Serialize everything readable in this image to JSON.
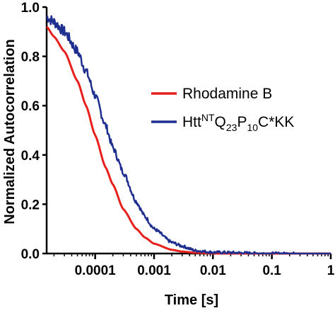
{
  "chart_data": {
    "type": "line",
    "x_scale": "log",
    "xlabel": "Time [s]",
    "ylabel": "Normalized  Autocorrelation",
    "xlim": [
      1.5e-05,
      1
    ],
    "ylim": [
      0,
      1.0
    ],
    "x_ticks": [
      {
        "value": 0.0001,
        "label": "0.0001"
      },
      {
        "value": 0.001,
        "label": "0.001"
      },
      {
        "value": 0.01,
        "label": "0.01"
      },
      {
        "value": 0.1,
        "label": "0.1"
      },
      {
        "value": 1,
        "label": "1"
      }
    ],
    "y_ticks": [
      {
        "value": 0.0,
        "label": "0.0"
      },
      {
        "value": 0.2,
        "label": "0.2"
      },
      {
        "value": 0.4,
        "label": "0.4"
      },
      {
        "value": 0.6,
        "label": "0.6"
      },
      {
        "value": 0.8,
        "label": "0.8"
      },
      {
        "value": 1.0,
        "label": "1.0"
      }
    ],
    "grid": false,
    "legend_position": "right",
    "series": [
      {
        "name": "Rhodamine B",
        "color": "#e8201c",
        "tau_d": 8e-05,
        "noise": 0,
        "x": [
          1.5e-05,
          2e-05,
          3e-05,
          5e-05,
          7e-05,
          0.0001,
          0.00015,
          0.0002,
          0.0003,
          0.0005,
          0.0007,
          0.001,
          0.002,
          0.003,
          0.005,
          0.01,
          0.1,
          1
        ],
        "y": [
          0.92,
          0.88,
          0.82,
          0.7,
          0.6,
          0.48,
          0.35,
          0.28,
          0.18,
          0.1,
          0.065,
          0.04,
          0.015,
          0.008,
          0.003,
          0.0,
          0.0,
          0.0
        ]
      },
      {
        "name": "Htt^NTQ23P10C*KK",
        "color": "#1f2f8f",
        "tau_d": 0.00016,
        "noise": 0.018,
        "x": [
          1.5e-05,
          2e-05,
          3e-05,
          5e-05,
          7e-05,
          0.0001,
          0.00015,
          0.0002,
          0.0003,
          0.0005,
          0.0007,
          0.001,
          0.002,
          0.003,
          0.005,
          0.01,
          0.1,
          1
        ],
        "y": [
          0.96,
          0.94,
          0.9,
          0.82,
          0.74,
          0.64,
          0.52,
          0.43,
          0.33,
          0.21,
          0.15,
          0.1,
          0.045,
          0.03,
          0.012,
          0.005,
          0.0,
          0.0
        ]
      }
    ],
    "legend_labels": [
      {
        "main": "Rhodamine B"
      },
      {
        "main": "Htt",
        "sup": "NT",
        "rest": [
          {
            "t": "Q",
            "sub": "23"
          },
          {
            "t": "P",
            "sub": "10"
          },
          {
            "t": "C*KK"
          }
        ]
      }
    ]
  }
}
